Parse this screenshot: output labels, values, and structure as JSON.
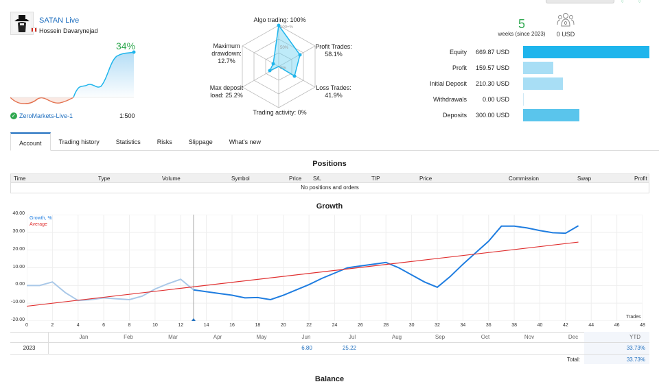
{
  "account": {
    "name": "SATAN Live",
    "owner": "Hossein Davarynejad",
    "growth_pct": "34%",
    "broker": "ZeroMarkets-Live-1",
    "leverage": "1:500"
  },
  "radar": {
    "ring_labels": [
      "100+%",
      "50%",
      "0%"
    ],
    "algo": "Algo trading: 100%",
    "profit_trades": [
      "Profit Trades:",
      "58.1%"
    ],
    "loss_trades": [
      "Loss Trades:",
      "41.9%"
    ],
    "trading_activity": "Trading activity: 0%",
    "max_deposit_load": [
      "Max deposit",
      "load: 25.2%"
    ],
    "max_drawdown": [
      "Maximum",
      "drawdown:",
      "12.7%"
    ]
  },
  "weeks": {
    "count": "5",
    "label": "weeks (since 2023)"
  },
  "subscribers": {
    "icon_count": "0",
    "amount": "0 USD"
  },
  "stats": [
    {
      "label": "Equity",
      "value": "669.87 USD",
      "fill": 1.0,
      "color": "#1fb5ec"
    },
    {
      "label": "Profit",
      "value": "159.57 USD",
      "fill": 0.238,
      "color": "#a8def5"
    },
    {
      "label": "Initial Deposit",
      "value": "210.30 USD",
      "fill": 0.314,
      "color": "#a8def5"
    },
    {
      "label": "Withdrawals",
      "value": "0.00 USD",
      "fill": 0.0,
      "color": "#a8def5"
    },
    {
      "label": "Deposits",
      "value": "300.00 USD",
      "fill": 0.448,
      "color": "#5ac5ec"
    }
  ],
  "tabs": [
    "Account",
    "Trading history",
    "Statistics",
    "Risks",
    "Slippage",
    "What's new"
  ],
  "positions": {
    "title": "Positions",
    "columns": [
      "Time",
      "Type",
      "Volume",
      "Symbol",
      "Price",
      "S/L",
      "T/P",
      "Price",
      "Commission",
      "Swap",
      "Profit"
    ],
    "empty": "No positions and orders"
  },
  "growth": {
    "title": "Growth",
    "legend_growth": "Growth, %",
    "legend_average": "Average",
    "x_label": "Trades",
    "y_ticks": [
      "40.00",
      "30.00",
      "20.00",
      "10.00",
      "0.00",
      "-10.00",
      "-20.00"
    ],
    "x_ticks": [
      "0",
      "2",
      "4",
      "6",
      "8",
      "10",
      "12",
      "14",
      "16",
      "18",
      "20",
      "22",
      "24",
      "26",
      "28",
      "30",
      "32",
      "34",
      "36",
      "38",
      "40",
      "42",
      "44",
      "46",
      "48"
    ]
  },
  "chart_data": {
    "type": "line",
    "xlabel": "Trades",
    "ylabel": "",
    "xlim": [
      0,
      48
    ],
    "ylim": [
      -20,
      40
    ],
    "grid": true,
    "legend": "top-left",
    "series": [
      {
        "name": "Growth, %",
        "color": "#1f7de0",
        "x": [
          0,
          1,
          2,
          3,
          4,
          5,
          6,
          7,
          8,
          9,
          10,
          11,
          12,
          13,
          14,
          15,
          16,
          17,
          18,
          19,
          20,
          21,
          22,
          23,
          24,
          25,
          26,
          27,
          28,
          29,
          30,
          31,
          32,
          33,
          34,
          35,
          36,
          37,
          38,
          39,
          40,
          41,
          42,
          43
        ],
        "y": [
          0,
          0,
          2,
          -4,
          -8.5,
          -8,
          -7,
          -7.5,
          -8,
          -6,
          -2,
          1,
          3.5,
          -2.5,
          -3.5,
          -4.5,
          -5.5,
          -7,
          -6.8,
          -8,
          -5.5,
          -2.5,
          0.5,
          4,
          7,
          10,
          11,
          12,
          13,
          10,
          6,
          2,
          -1,
          5,
          12,
          18.5,
          25,
          33.5,
          33.5,
          32.5,
          31,
          29.8,
          29.5,
          33.7
        ]
      },
      {
        "name": "Average",
        "color": "#e03030",
        "x": [
          0,
          43
        ],
        "y": [
          -11.7,
          24.5
        ]
      }
    ]
  },
  "monthly": {
    "months": [
      "Jan",
      "Feb",
      "Mar",
      "Apr",
      "May",
      "Jun",
      "Jul",
      "Aug",
      "Sep",
      "Oct",
      "Nov",
      "Dec"
    ],
    "ytd_label": "YTD",
    "year": "2023",
    "jun": "6.80",
    "jul": "25.22",
    "ytd": "33.73%",
    "total_label": "Total:",
    "total": "33.73%"
  },
  "balance": {
    "title": "Balance"
  }
}
